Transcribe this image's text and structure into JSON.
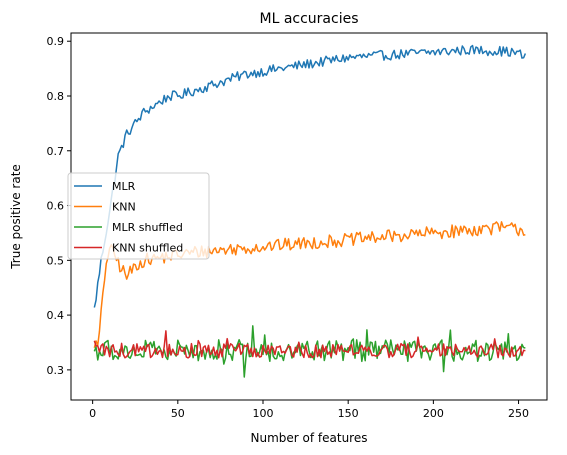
{
  "chart_data": {
    "type": "line",
    "title": "ML accuracies",
    "xlabel": "Number of features",
    "ylabel": "True positive rate",
    "xlim": [
      -12.7,
      266.7
    ],
    "ylim": [
      0.245,
      0.915
    ],
    "xticks": [
      0,
      50,
      100,
      150,
      200,
      250
    ],
    "yticks": [
      0.3,
      0.4,
      0.5,
      0.6,
      0.7,
      0.8,
      0.9
    ],
    "xtick_labels": [
      "0",
      "50",
      "100",
      "150",
      "200",
      "250"
    ],
    "ytick_labels": [
      "0.3",
      "0.4",
      "0.5",
      "0.6",
      "0.7",
      "0.8",
      "0.9"
    ],
    "grid": false,
    "legend_position": "center-left",
    "series": [
      {
        "name": "MLR",
        "color": "#1f77b4",
        "x": [
          1,
          5,
          10,
          15,
          20,
          25,
          30,
          35,
          40,
          45,
          50,
          60,
          70,
          80,
          90,
          100,
          110,
          120,
          130,
          140,
          150,
          160,
          170,
          180,
          190,
          200,
          210,
          220,
          230,
          240,
          250,
          254
        ],
        "values": [
          0.41,
          0.5,
          0.59,
          0.69,
          0.73,
          0.75,
          0.77,
          0.78,
          0.79,
          0.8,
          0.8,
          0.81,
          0.82,
          0.83,
          0.84,
          0.845,
          0.85,
          0.855,
          0.86,
          0.865,
          0.87,
          0.872,
          0.874,
          0.876,
          0.878,
          0.88,
          0.882,
          0.884,
          0.883,
          0.882,
          0.878,
          0.87
        ],
        "noise": 0.009
      },
      {
        "name": "KNN",
        "color": "#ff7f0e",
        "x": [
          1,
          3,
          5,
          8,
          10,
          13,
          16,
          20,
          25,
          30,
          40,
          50,
          60,
          80,
          100,
          120,
          140,
          160,
          180,
          200,
          220,
          240,
          254
        ],
        "values": [
          0.35,
          0.34,
          0.4,
          0.5,
          0.52,
          0.51,
          0.49,
          0.47,
          0.49,
          0.5,
          0.505,
          0.51,
          0.515,
          0.52,
          0.525,
          0.53,
          0.535,
          0.54,
          0.545,
          0.55,
          0.555,
          0.56,
          0.555
        ],
        "noise": 0.012
      },
      {
        "name": "MLR shuffled",
        "color": "#2ca02c",
        "x": [
          1,
          50,
          100,
          150,
          200,
          254
        ],
        "values": [
          0.335,
          0.335,
          0.335,
          0.335,
          0.335,
          0.335
        ],
        "noise": 0.02
      },
      {
        "name": "KNN shuffled",
        "color": "#d62728",
        "x": [
          1,
          50,
          100,
          150,
          200,
          254
        ],
        "values": [
          0.335,
          0.335,
          0.335,
          0.335,
          0.335,
          0.335
        ],
        "noise": 0.013
      }
    ]
  }
}
